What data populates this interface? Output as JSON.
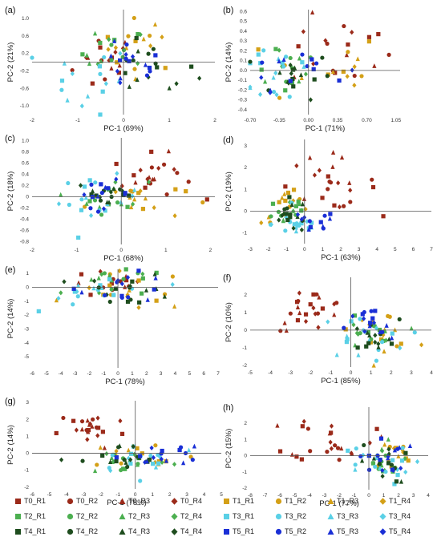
{
  "colors": {
    "T0": "#9b2a1a",
    "T1": "#d4a017",
    "T2": "#4caf50",
    "T3": "#5ad0e6",
    "T4": "#1e4d1e",
    "T5": "#1a2fd6"
  },
  "legend": [
    {
      "label": "T0_R1",
      "group": "T0",
      "marker": "square"
    },
    {
      "label": "T0_R2",
      "group": "T0",
      "marker": "circle"
    },
    {
      "label": "T0_R3",
      "group": "T0",
      "marker": "triangle"
    },
    {
      "label": "T0_R4",
      "group": "T0",
      "marker": "diamond"
    },
    {
      "label": "T1_R1",
      "group": "T1",
      "marker": "square"
    },
    {
      "label": "T1_R2",
      "group": "T1",
      "marker": "circle"
    },
    {
      "label": "T1_R3",
      "group": "T1",
      "marker": "triangle"
    },
    {
      "label": "T1_R4",
      "group": "T1",
      "marker": "diamond"
    },
    {
      "label": "T2_R1",
      "group": "T2",
      "marker": "square"
    },
    {
      "label": "T2_R2",
      "group": "T2",
      "marker": "circle"
    },
    {
      "label": "T2_R3",
      "group": "T2",
      "marker": "triangle"
    },
    {
      "label": "T2_R4",
      "group": "T2",
      "marker": "diamond"
    },
    {
      "label": "T3_R1",
      "group": "T3",
      "marker": "square"
    },
    {
      "label": "T3_R2",
      "group": "T3",
      "marker": "circle"
    },
    {
      "label": "T3_R3",
      "group": "T3",
      "marker": "triangle"
    },
    {
      "label": "T3_R4",
      "group": "T3",
      "marker": "diamond"
    },
    {
      "label": "T4_R1",
      "group": "T4",
      "marker": "square"
    },
    {
      "label": "T4_R2",
      "group": "T4",
      "marker": "circle"
    },
    {
      "label": "T4_R3",
      "group": "T4",
      "marker": "triangle"
    },
    {
      "label": "T4_R4",
      "group": "T4",
      "marker": "diamond"
    },
    {
      "label": "T5_R1",
      "group": "T5",
      "marker": "square"
    },
    {
      "label": "T5_R2",
      "group": "T5",
      "marker": "circle"
    },
    {
      "label": "T5_R3",
      "group": "T5",
      "marker": "triangle"
    },
    {
      "label": "T5_R4",
      "group": "T5",
      "marker": "diamond"
    }
  ],
  "chart_data": [
    {
      "panel": "(a)",
      "type": "scatter",
      "xlabel": "PC-1 (69%)",
      "ylabel": "PC-2 (21%)",
      "xlim": [
        -2,
        2
      ],
      "ylim": [
        -1.2,
        1.2
      ],
      "xticks": [
        -2,
        -1,
        0,
        1,
        2
      ],
      "xtick_labels": [
        "-2",
        "-1",
        "0",
        "1",
        "2"
      ],
      "yticks": [
        -1.0,
        -0.6,
        -0.2,
        0.2,
        0.6,
        1.0
      ],
      "ytick_labels": [
        "-1.0",
        "-0.6",
        "-0.2",
        "0.2",
        "0.6",
        "1.0"
      ],
      "clusters": [
        {
          "group": "T0",
          "cx": -0.4,
          "cy": 0.0,
          "sx": 0.35,
          "sy": 0.35,
          "n": 16
        },
        {
          "group": "T1",
          "cx": 0.4,
          "cy": 0.4,
          "sx": 0.45,
          "sy": 0.3,
          "n": 16
        },
        {
          "group": "T2",
          "cx": -0.2,
          "cy": 0.2,
          "sx": 0.35,
          "sy": 0.3,
          "n": 16
        },
        {
          "group": "T3",
          "cx": -0.9,
          "cy": -0.4,
          "sx": 0.55,
          "sy": 0.4,
          "n": 16
        },
        {
          "group": "T4",
          "cx": 0.6,
          "cy": -0.2,
          "sx": 0.5,
          "sy": 0.3,
          "n": 16
        },
        {
          "group": "T5",
          "cx": 0.1,
          "cy": -0.1,
          "sx": 0.4,
          "sy": 0.3,
          "n": 16
        }
      ]
    },
    {
      "panel": "(b)",
      "type": "scatter",
      "xlabel": "PC-1 (71%)",
      "ylabel": "PC-2 (14%)",
      "xlim": [
        -0.7,
        1.1
      ],
      "ylim": [
        -0.45,
        0.62
      ],
      "xticks": [
        -0.7,
        -0.35,
        0,
        0.35,
        0.7,
        1.05
      ],
      "xtick_labels": [
        "-0.70",
        "-0.35",
        "0.00",
        "0.35",
        "0.70",
        "1.05"
      ],
      "yticks": [
        -0.4,
        -0.3,
        -0.2,
        -0.1,
        0,
        0.1,
        0.2,
        0.3,
        0.4,
        0.5,
        0.6
      ],
      "ytick_labels": [
        "-0.4",
        "-0.3",
        "-0.2",
        "-0.1",
        "0.0",
        "0.1",
        "0.2",
        "0.3",
        "0.4",
        "0.5",
        "0.6"
      ],
      "clusters": [
        {
          "group": "T0",
          "cx": 0.4,
          "cy": 0.2,
          "sx": 0.3,
          "sy": 0.18,
          "n": 18
        },
        {
          "group": "T1",
          "cx": 0.2,
          "cy": 0.0,
          "sx": 0.35,
          "sy": 0.2,
          "n": 14
        },
        {
          "group": "T2",
          "cx": -0.3,
          "cy": 0.05,
          "sx": 0.25,
          "sy": 0.15,
          "n": 16
        },
        {
          "group": "T3",
          "cx": -0.35,
          "cy": 0.0,
          "sx": 0.25,
          "sy": 0.2,
          "n": 18
        },
        {
          "group": "T4",
          "cx": -0.2,
          "cy": -0.05,
          "sx": 0.25,
          "sy": 0.12,
          "n": 16
        },
        {
          "group": "T5",
          "cx": -0.15,
          "cy": 0.05,
          "sx": 0.3,
          "sy": 0.12,
          "n": 14
        }
      ]
    },
    {
      "panel": "(c)",
      "type": "scatter",
      "xlabel": "PC-1 (68%)",
      "ylabel": "PC-2 (18%)",
      "xlim": [
        -2,
        2.1
      ],
      "ylim": [
        -0.85,
        1.05
      ],
      "xticks": [
        -2,
        -1,
        0,
        1,
        2
      ],
      "xtick_labels": [
        "-2",
        "-1",
        "0",
        "1",
        "2"
      ],
      "yticks": [
        -0.8,
        -0.6,
        -0.4,
        -0.2,
        0,
        0.2,
        0.4,
        0.6,
        0.8,
        1.0
      ],
      "ytick_labels": [
        "-0.8",
        "-0.6",
        "-0.4",
        "-0.2",
        "0",
        "0.2",
        "0.4",
        "0.6",
        "0.8",
        "1.0"
      ],
      "clusters": [
        {
          "group": "T0",
          "cx": 0.7,
          "cy": 0.35,
          "sx": 0.45,
          "sy": 0.2,
          "n": 22
        },
        {
          "group": "T1",
          "cx": 0.3,
          "cy": -0.05,
          "sx": 0.55,
          "sy": 0.18,
          "n": 16
        },
        {
          "group": "T2",
          "cx": -0.2,
          "cy": 0.0,
          "sx": 0.4,
          "sy": 0.15,
          "n": 16
        },
        {
          "group": "T3",
          "cx": -0.5,
          "cy": -0.05,
          "sx": 0.45,
          "sy": 0.2,
          "n": 18
        },
        {
          "group": "T4",
          "cx": -0.3,
          "cy": 0.05,
          "sx": 0.35,
          "sy": 0.12,
          "n": 16
        },
        {
          "group": "T5",
          "cx": -0.4,
          "cy": 0.05,
          "sx": 0.3,
          "sy": 0.12,
          "n": 14
        }
      ]
    },
    {
      "panel": "(d)",
      "type": "scatter",
      "xlabel": "PC-1 (63%)",
      "ylabel": "PC-2 (19%)",
      "xlim": [
        -3,
        7
      ],
      "ylim": [
        -1.5,
        3.3
      ],
      "xticks": [
        -3,
        -2,
        -1,
        0,
        1,
        2,
        3,
        4,
        5,
        6,
        7
      ],
      "xtick_labels": [
        "-3",
        "-2",
        "-1",
        "0",
        "1",
        "2",
        "3",
        "4",
        "5",
        "6",
        "7"
      ],
      "yticks": [
        -1,
        0,
        1,
        2,
        3
      ],
      "ytick_labels": [
        "-1",
        "0",
        "1",
        "2",
        "3"
      ],
      "clusters": [
        {
          "group": "T0",
          "cx": 1.2,
          "cy": 1.3,
          "sx": 1.4,
          "sy": 0.6,
          "n": 24
        },
        {
          "group": "T1",
          "cx": -0.8,
          "cy": 0.2,
          "sx": 0.8,
          "sy": 0.4,
          "n": 16
        },
        {
          "group": "T2",
          "cx": -0.9,
          "cy": 0.0,
          "sx": 0.6,
          "sy": 0.4,
          "n": 16
        },
        {
          "group": "T3",
          "cx": -0.4,
          "cy": -0.6,
          "sx": 0.7,
          "sy": 0.3,
          "n": 18
        },
        {
          "group": "T4",
          "cx": -0.7,
          "cy": -0.2,
          "sx": 0.6,
          "sy": 0.4,
          "n": 16
        },
        {
          "group": "T5",
          "cx": 0.3,
          "cy": -0.6,
          "sx": 0.7,
          "sy": 0.3,
          "n": 12
        }
      ]
    },
    {
      "panel": "(e)",
      "type": "scatter",
      "xlabel": "PC-1 (78%)",
      "ylabel": "PC-2 (14%)",
      "xlim": [
        -6,
        7
      ],
      "ylim": [
        -5.8,
        1.3
      ],
      "xticks": [
        -6,
        -5,
        -4,
        -3,
        -2,
        -1,
        0,
        1,
        2,
        3,
        4,
        5,
        6,
        7
      ],
      "xtick_labels": [
        "-6",
        "-5",
        "-4",
        "-3",
        "-2",
        "-1",
        "0",
        "1",
        "2",
        "3",
        "4",
        "5",
        "6",
        "7"
      ],
      "yticks": [
        -5,
        -4,
        -3,
        -2,
        -1,
        0,
        1
      ],
      "ytick_labels": [
        "-5",
        "-4",
        "-3",
        "-2",
        "-1",
        "0",
        "1"
      ],
      "clusters": [
        {
          "group": "T0",
          "cx": -0.5,
          "cy": 0.2,
          "sx": 1.5,
          "sy": 0.5,
          "n": 16
        },
        {
          "group": "T1",
          "cx": 1.0,
          "cy": -0.3,
          "sx": 2.0,
          "sy": 0.7,
          "n": 16
        },
        {
          "group": "T2",
          "cx": 0.0,
          "cy": 0.2,
          "sx": 1.8,
          "sy": 0.6,
          "n": 16
        },
        {
          "group": "T3",
          "cx": -1.0,
          "cy": -0.2,
          "sx": 2.0,
          "sy": 0.6,
          "n": 18
        },
        {
          "group": "T4",
          "cx": 0.8,
          "cy": -0.2,
          "sx": 1.6,
          "sy": 0.6,
          "n": 16
        },
        {
          "group": "T5",
          "cx": 0.5,
          "cy": 0.0,
          "sx": 1.6,
          "sy": 0.5,
          "n": 14
        }
      ]
    },
    {
      "panel": "(f)",
      "type": "scatter",
      "xlabel": "PC-1 (85%)",
      "ylabel": "PC-2 (10%)",
      "xlim": [
        -5,
        4
      ],
      "ylim": [
        -2.1,
        3.0
      ],
      "xticks": [
        -5,
        -4,
        -3,
        -2,
        -1,
        0,
        1,
        2,
        3,
        4
      ],
      "xtick_labels": [
        "-5",
        "-4",
        "-3",
        "-2",
        "-1",
        "0",
        "1",
        "2",
        "3",
        "4"
      ],
      "yticks": [
        -2,
        -1,
        0,
        1,
        2
      ],
      "ytick_labels": [
        "-2",
        "-1",
        "0",
        "1",
        "2"
      ],
      "clusters": [
        {
          "group": "T0",
          "cx": -2.0,
          "cy": 1.2,
          "sx": 0.9,
          "sy": 0.6,
          "n": 24
        },
        {
          "group": "T1",
          "cx": 1.6,
          "cy": 0.0,
          "sx": 0.8,
          "sy": 0.5,
          "n": 16
        },
        {
          "group": "T2",
          "cx": 0.8,
          "cy": -0.3,
          "sx": 0.7,
          "sy": 0.5,
          "n": 16
        },
        {
          "group": "T3",
          "cx": 0.6,
          "cy": -0.4,
          "sx": 1.1,
          "sy": 0.6,
          "n": 18
        },
        {
          "group": "T4",
          "cx": 1.0,
          "cy": -0.4,
          "sx": 0.7,
          "sy": 0.5,
          "n": 16
        },
        {
          "group": "T5",
          "cx": 0.9,
          "cy": 0.1,
          "sx": 0.6,
          "sy": 0.6,
          "n": 16
        }
      ]
    },
    {
      "panel": "(g)",
      "type": "scatter",
      "xlabel": "PC-1 (78%)",
      "ylabel": "PC-2 (14%)",
      "xlim": [
        -6,
        5
      ],
      "ylim": [
        -2.1,
        3.1
      ],
      "xticks": [
        -6,
        -5,
        -4,
        -3,
        -2,
        -1,
        0,
        1,
        2,
        3,
        4,
        5
      ],
      "xtick_labels": [
        "-6",
        "-5",
        "-4",
        "-3",
        "-2",
        "-1",
        "0",
        "1",
        "2",
        "3",
        "4",
        "5"
      ],
      "yticks": [
        -2,
        -1,
        0,
        1,
        2,
        3
      ],
      "ytick_labels": [
        "-2",
        "-1",
        "0",
        "1",
        "2",
        "3"
      ],
      "clusters": [
        {
          "group": "T0",
          "cx": -2.5,
          "cy": 1.4,
          "sx": 1.0,
          "sy": 0.6,
          "n": 24
        },
        {
          "group": "T1",
          "cx": 0.5,
          "cy": -0.2,
          "sx": 1.6,
          "sy": 0.5,
          "n": 16
        },
        {
          "group": "T2",
          "cx": -0.5,
          "cy": -0.4,
          "sx": 1.3,
          "sy": 0.4,
          "n": 16
        },
        {
          "group": "T3",
          "cx": 0.6,
          "cy": -0.2,
          "sx": 1.7,
          "sy": 0.5,
          "n": 18
        },
        {
          "group": "T4",
          "cx": -0.8,
          "cy": -0.5,
          "sx": 1.2,
          "sy": 0.5,
          "n": 16
        },
        {
          "group": "T5",
          "cx": 1.5,
          "cy": 0.0,
          "sx": 1.2,
          "sy": 0.4,
          "n": 16
        }
      ]
    },
    {
      "panel": "(h)",
      "type": "scatter",
      "xlabel": "PC-1 (77%)",
      "ylabel": "PC-2 (15%)",
      "xlim": [
        -8,
        4
      ],
      "ylim": [
        -2.1,
        3.0
      ],
      "xticks": [
        -8,
        -7,
        -6,
        -5,
        -4,
        -3,
        -2,
        -1,
        0,
        1,
        2,
        3,
        4
      ],
      "xtick_labels": [
        "-8",
        "-7",
        "-6",
        "-5",
        "-4",
        "-3",
        "-2",
        "-1",
        "0",
        "1",
        "2",
        "3",
        "4"
      ],
      "yticks": [
        -2,
        -1,
        0,
        1,
        2
      ],
      "ytick_labels": [
        "-2",
        "-1",
        "0",
        "1",
        "2"
      ],
      "clusters": [
        {
          "group": "T0",
          "cx": -2.5,
          "cy": 1.1,
          "sx": 1.4,
          "sy": 0.7,
          "n": 24
        },
        {
          "group": "T1",
          "cx": 1.5,
          "cy": -0.1,
          "sx": 0.8,
          "sy": 0.6,
          "n": 16
        },
        {
          "group": "T2",
          "cx": 0.8,
          "cy": -0.4,
          "sx": 0.8,
          "sy": 0.6,
          "n": 16
        },
        {
          "group": "T3",
          "cx": 0.2,
          "cy": -0.6,
          "sx": 1.3,
          "sy": 0.6,
          "n": 18
        },
        {
          "group": "T4",
          "cx": 1.0,
          "cy": -0.5,
          "sx": 0.8,
          "sy": 0.6,
          "n": 16
        },
        {
          "group": "T5",
          "cx": 1.0,
          "cy": 0.0,
          "sx": 0.8,
          "sy": 0.6,
          "n": 16
        }
      ]
    }
  ]
}
